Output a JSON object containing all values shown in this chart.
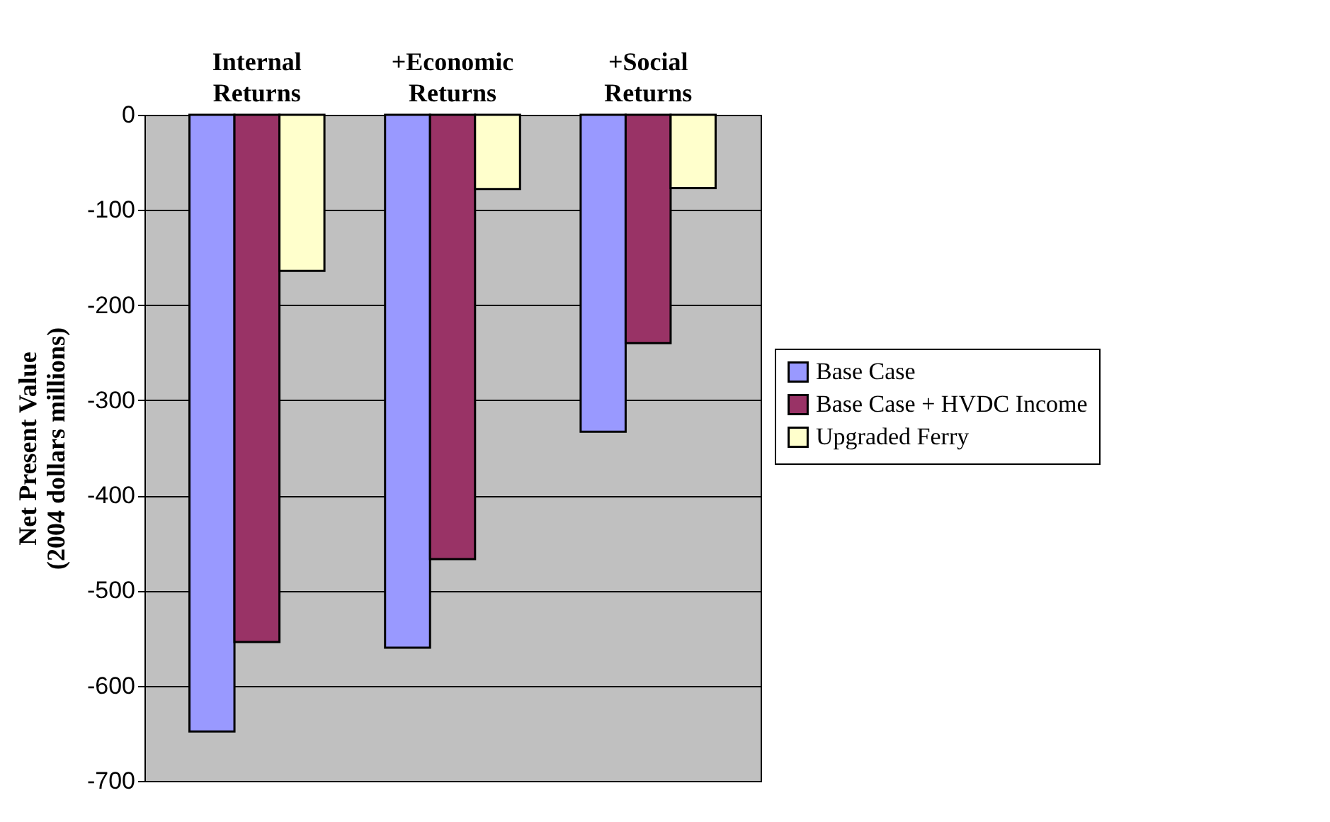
{
  "chart_data": {
    "type": "bar",
    "ylabel": "Net Present Value\n(2004 dollars millions)",
    "categories": [
      "Internal Returns",
      "+Economic Returns",
      "+Social Returns"
    ],
    "series": [
      {
        "name": "Base Case",
        "color": "#9999ff",
        "values": [
          -648,
          -560,
          -333
        ]
      },
      {
        "name": "Base Case + HVDC Income",
        "color": "#993366",
        "values": [
          -554,
          -467,
          -240
        ]
      },
      {
        "name": "Upgraded Ferry",
        "color": "#ffffcc",
        "values": [
          -164,
          -78,
          -77
        ]
      }
    ],
    "ylim": [
      -700,
      0
    ],
    "yticks": [
      0,
      -100,
      -200,
      -300,
      -400,
      -500,
      -600,
      -700
    ],
    "grid": "y",
    "legend": "right"
  }
}
